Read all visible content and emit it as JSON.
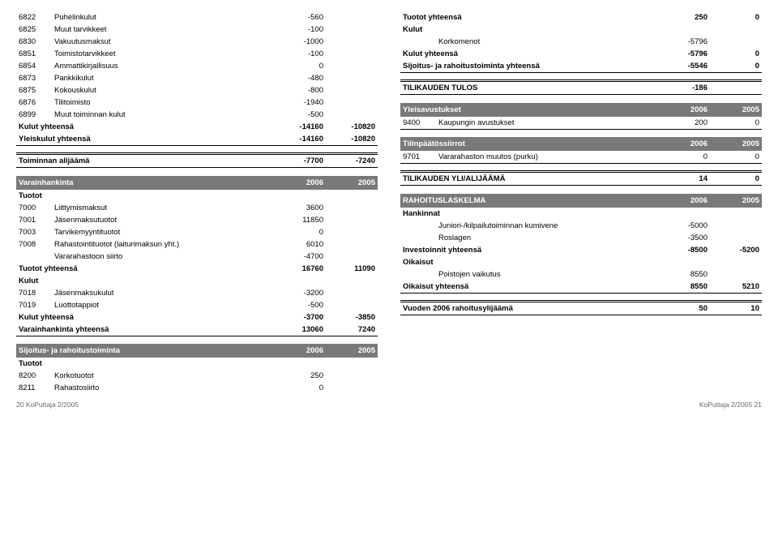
{
  "left": {
    "top_rows": [
      {
        "code": "6822",
        "label": "Puhelinkulut",
        "v1": "-560",
        "v2": ""
      },
      {
        "code": "6825",
        "label": "Muut tarvikkeet",
        "v1": "-100",
        "v2": ""
      },
      {
        "code": "6830",
        "label": "Vakuutusmaksut",
        "v1": "-1000",
        "v2": ""
      },
      {
        "code": "6851",
        "label": "Toimistotarvikkeet",
        "v1": "-100",
        "v2": ""
      },
      {
        "code": "6854",
        "label": "Ammattikirjallisuus",
        "v1": "0",
        "v2": ""
      },
      {
        "code": "6873",
        "label": "Pankkikulut",
        "v1": "-480",
        "v2": ""
      },
      {
        "code": "6875",
        "label": "Kokouskulut",
        "v1": "-800",
        "v2": ""
      },
      {
        "code": "6876",
        "label": "Tilitoimisto",
        "v1": "-1940",
        "v2": ""
      },
      {
        "code": "6899",
        "label": "Muut toiminnan kulut",
        "v1": "-500",
        "v2": ""
      }
    ],
    "top_totals": [
      {
        "label": "Kulut yhteensä",
        "v1": "-14160",
        "v2": "-10820",
        "bold": true
      },
      {
        "label": "Yleiskulut yhteensä",
        "v1": "-14160",
        "v2": "-10820",
        "bold": true
      }
    ],
    "alijaama": {
      "label": "Toiminnan alijäämä",
      "v1": "-7700",
      "v2": "-7240"
    },
    "varainhankinta_hdr": {
      "title": "Varainhankinta",
      "c1": "2006",
      "c2": "2005"
    },
    "tuotot_label": "Tuotot",
    "var_rows": [
      {
        "code": "7000",
        "label": "Liittymismaksut",
        "v1": "3600",
        "v2": ""
      },
      {
        "code": "7001",
        "label": "Jäsenmaksutuotot",
        "v1": "11850",
        "v2": ""
      },
      {
        "code": "7003",
        "label": "Tarvikemyyntituotot",
        "v1": "0",
        "v2": ""
      },
      {
        "code": "7008",
        "label": "Rahastointituotot (laiturimaksun yht.)",
        "v1": "6010",
        "v2": ""
      },
      {
        "code": "",
        "label": "Vararahastoon siirto",
        "v1": "-4700",
        "v2": ""
      }
    ],
    "var_tuotot_yht": {
      "label": "Tuotot yhteensä",
      "v1": "16760",
      "v2": "11090"
    },
    "kulut_label": "Kulut",
    "var_kulut_rows": [
      {
        "code": "7018",
        "label": "Jäsenmaksukulut",
        "v1": "-3200",
        "v2": ""
      },
      {
        "code": "7019",
        "label": "Luottotappiot",
        "v1": "-500",
        "v2": ""
      }
    ],
    "var_kulut_yht": {
      "label": "Kulut yhteensä",
      "v1": "-3700",
      "v2": "-3850"
    },
    "var_yht": {
      "label": "Varainhankinta yhteensä",
      "v1": "13060",
      "v2": "7240"
    },
    "sijoitus_hdr": {
      "title": "Sijoitus- ja rahoitustoiminta",
      "c1": "2006",
      "c2": "2005"
    },
    "sij_rows": [
      {
        "code": "8200",
        "label": "Korkotuotot",
        "v1": "250",
        "v2": ""
      },
      {
        "code": "8211",
        "label": "Rahastosiirto",
        "v1": "0",
        "v2": ""
      }
    ]
  },
  "right": {
    "top_rows": [
      {
        "label": "Tuotot yhteensä",
        "v1": "250",
        "v2": "0",
        "bold": true
      },
      {
        "label": "Kulut",
        "v1": "",
        "v2": "",
        "bold": true
      }
    ],
    "korkomenot": {
      "label": "Korkomenot",
      "v1": "-5796",
      "v2": ""
    },
    "kulut_yht": {
      "label": "Kulut yhteensä",
      "v1": "-5796",
      "v2": "0"
    },
    "sij_yht": {
      "label": "Sijoitus- ja rahoitustoiminta yhteensä",
      "v1": "-5546",
      "v2": "0"
    },
    "tulos": {
      "label": "TILIKAUDEN TULOS",
      "v1": "-186",
      "v2": ""
    },
    "yleisavustukset_hdr": {
      "title": "Yleisavustukset",
      "c1": "2006",
      "c2": "2005"
    },
    "yle_row": {
      "code": "9400",
      "label": "Kaupungin avustukset",
      "v1": "200",
      "v2": "0"
    },
    "tilin_hdr": {
      "title": "Tilinpäätössiirrot",
      "c1": "2006",
      "c2": "2005"
    },
    "tilin_row": {
      "code": "9701",
      "label": "Vararahaston muutos (purku)",
      "v1": "0",
      "v2": "0"
    },
    "yliali": {
      "label": "TILIKAUDEN YLI/ALIJÄÄMÄ",
      "v1": "14",
      "v2": "0"
    },
    "rahoitus_hdr": {
      "title": "RAHOITUSLASKELMA",
      "c1": "2006",
      "c2": "2005"
    },
    "hankinnat_label": "Hankinnat",
    "hank_rows": [
      {
        "label": "Juniori-/kilpailutoiminnan kumivene",
        "v1": "-5000",
        "v2": ""
      },
      {
        "label": "Roslagen",
        "v1": "-3500",
        "v2": ""
      }
    ],
    "inv_yht": {
      "label": "Investoinnit yhteensä",
      "v1": "-8500",
      "v2": "-5200"
    },
    "oikaisut_label": "Oikaisut",
    "oik_row": {
      "label": "Poistojen vaikutus",
      "v1": "8550",
      "v2": ""
    },
    "oik_yht": {
      "label": "Oikaisut yhteensä",
      "v1": "8550",
      "v2": "5210"
    },
    "vuoden": {
      "label": "Vuoden 2006 rahoitusylijäämä",
      "v1": "50",
      "v2": "10"
    }
  },
  "footer": {
    "left": "20  KoPuttaja 2/2005",
    "right": "KoPuttaja 2/2005  21"
  }
}
